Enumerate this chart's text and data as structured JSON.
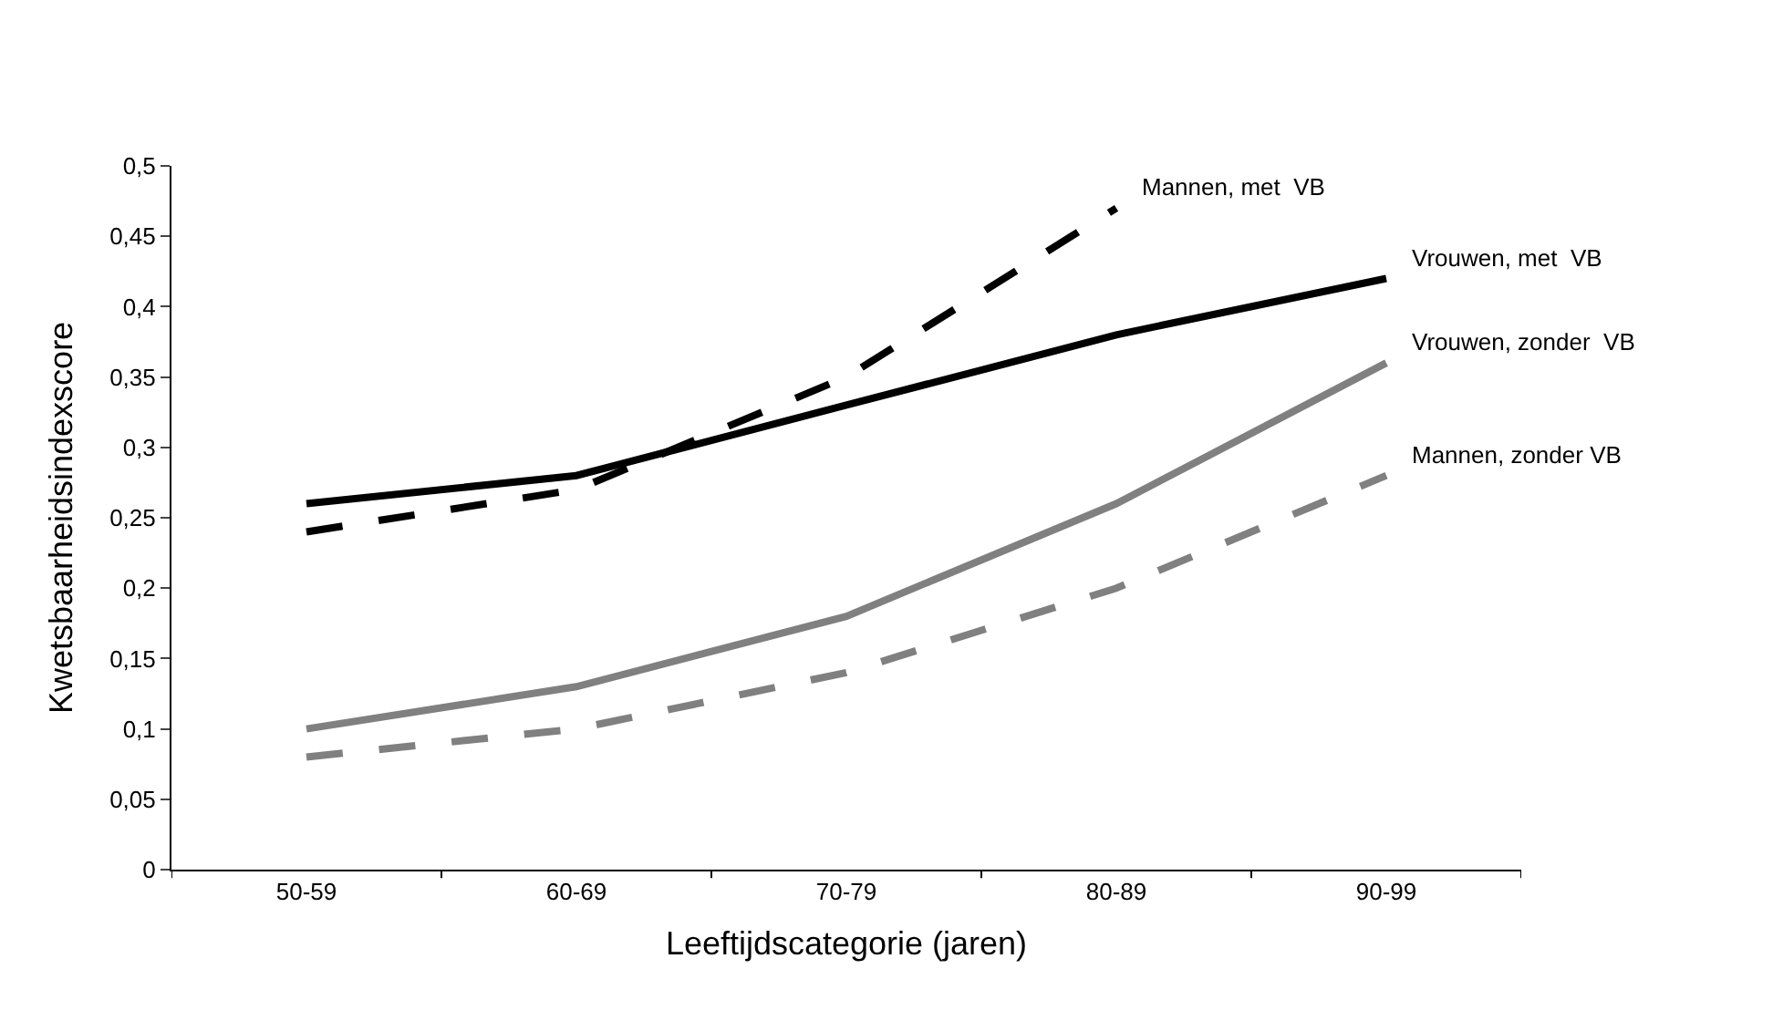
{
  "chart_data": {
    "type": "line",
    "xlabel": "Leeftijdscategorie (jaren)",
    "ylabel": "Kwetsbaarheidsindexscore",
    "categories": [
      "50-59",
      "60-69",
      "70-79",
      "80-89",
      "90-99"
    ],
    "series": [
      {
        "name": "Mannen, met  VB",
        "color": "#000000",
        "line_style": "dashed",
        "values": [
          0.24,
          0.27,
          0.35,
          0.47,
          null
        ]
      },
      {
        "name": "Vrouwen, met  VB",
        "color": "#000000",
        "line_style": "solid",
        "values": [
          0.26,
          0.28,
          0.33,
          0.38,
          0.42
        ]
      },
      {
        "name": "Vrouwen, zonder  VB",
        "color": "#808080",
        "line_style": "solid",
        "values": [
          0.1,
          0.13,
          0.18,
          0.26,
          0.36
        ]
      },
      {
        "name": "Mannen, zonder VB",
        "color": "#808080",
        "line_style": "dashed",
        "values": [
          0.08,
          0.1,
          0.14,
          0.2,
          0.28
        ]
      }
    ],
    "ylim": [
      0,
      0.5
    ],
    "yticks": [
      0,
      {
        "value": 0.05,
        "label": "0,05"
      },
      {
        "value": 0.1,
        "label": "0,1"
      },
      {
        "value": 0.15,
        "label": "0,15"
      },
      {
        "value": 0.2,
        "label": "0,2"
      },
      {
        "value": 0.25,
        "label": "0,25"
      },
      {
        "value": 0.3,
        "label": "0,3"
      },
      {
        "value": 0.35,
        "label": "0,35"
      },
      {
        "value": 0.4,
        "label": "0,4"
      },
      {
        "value": 0.45,
        "label": "0,45"
      },
      {
        "value": 0.5,
        "label": "0,5"
      }
    ],
    "legend": false,
    "marker": "none"
  }
}
